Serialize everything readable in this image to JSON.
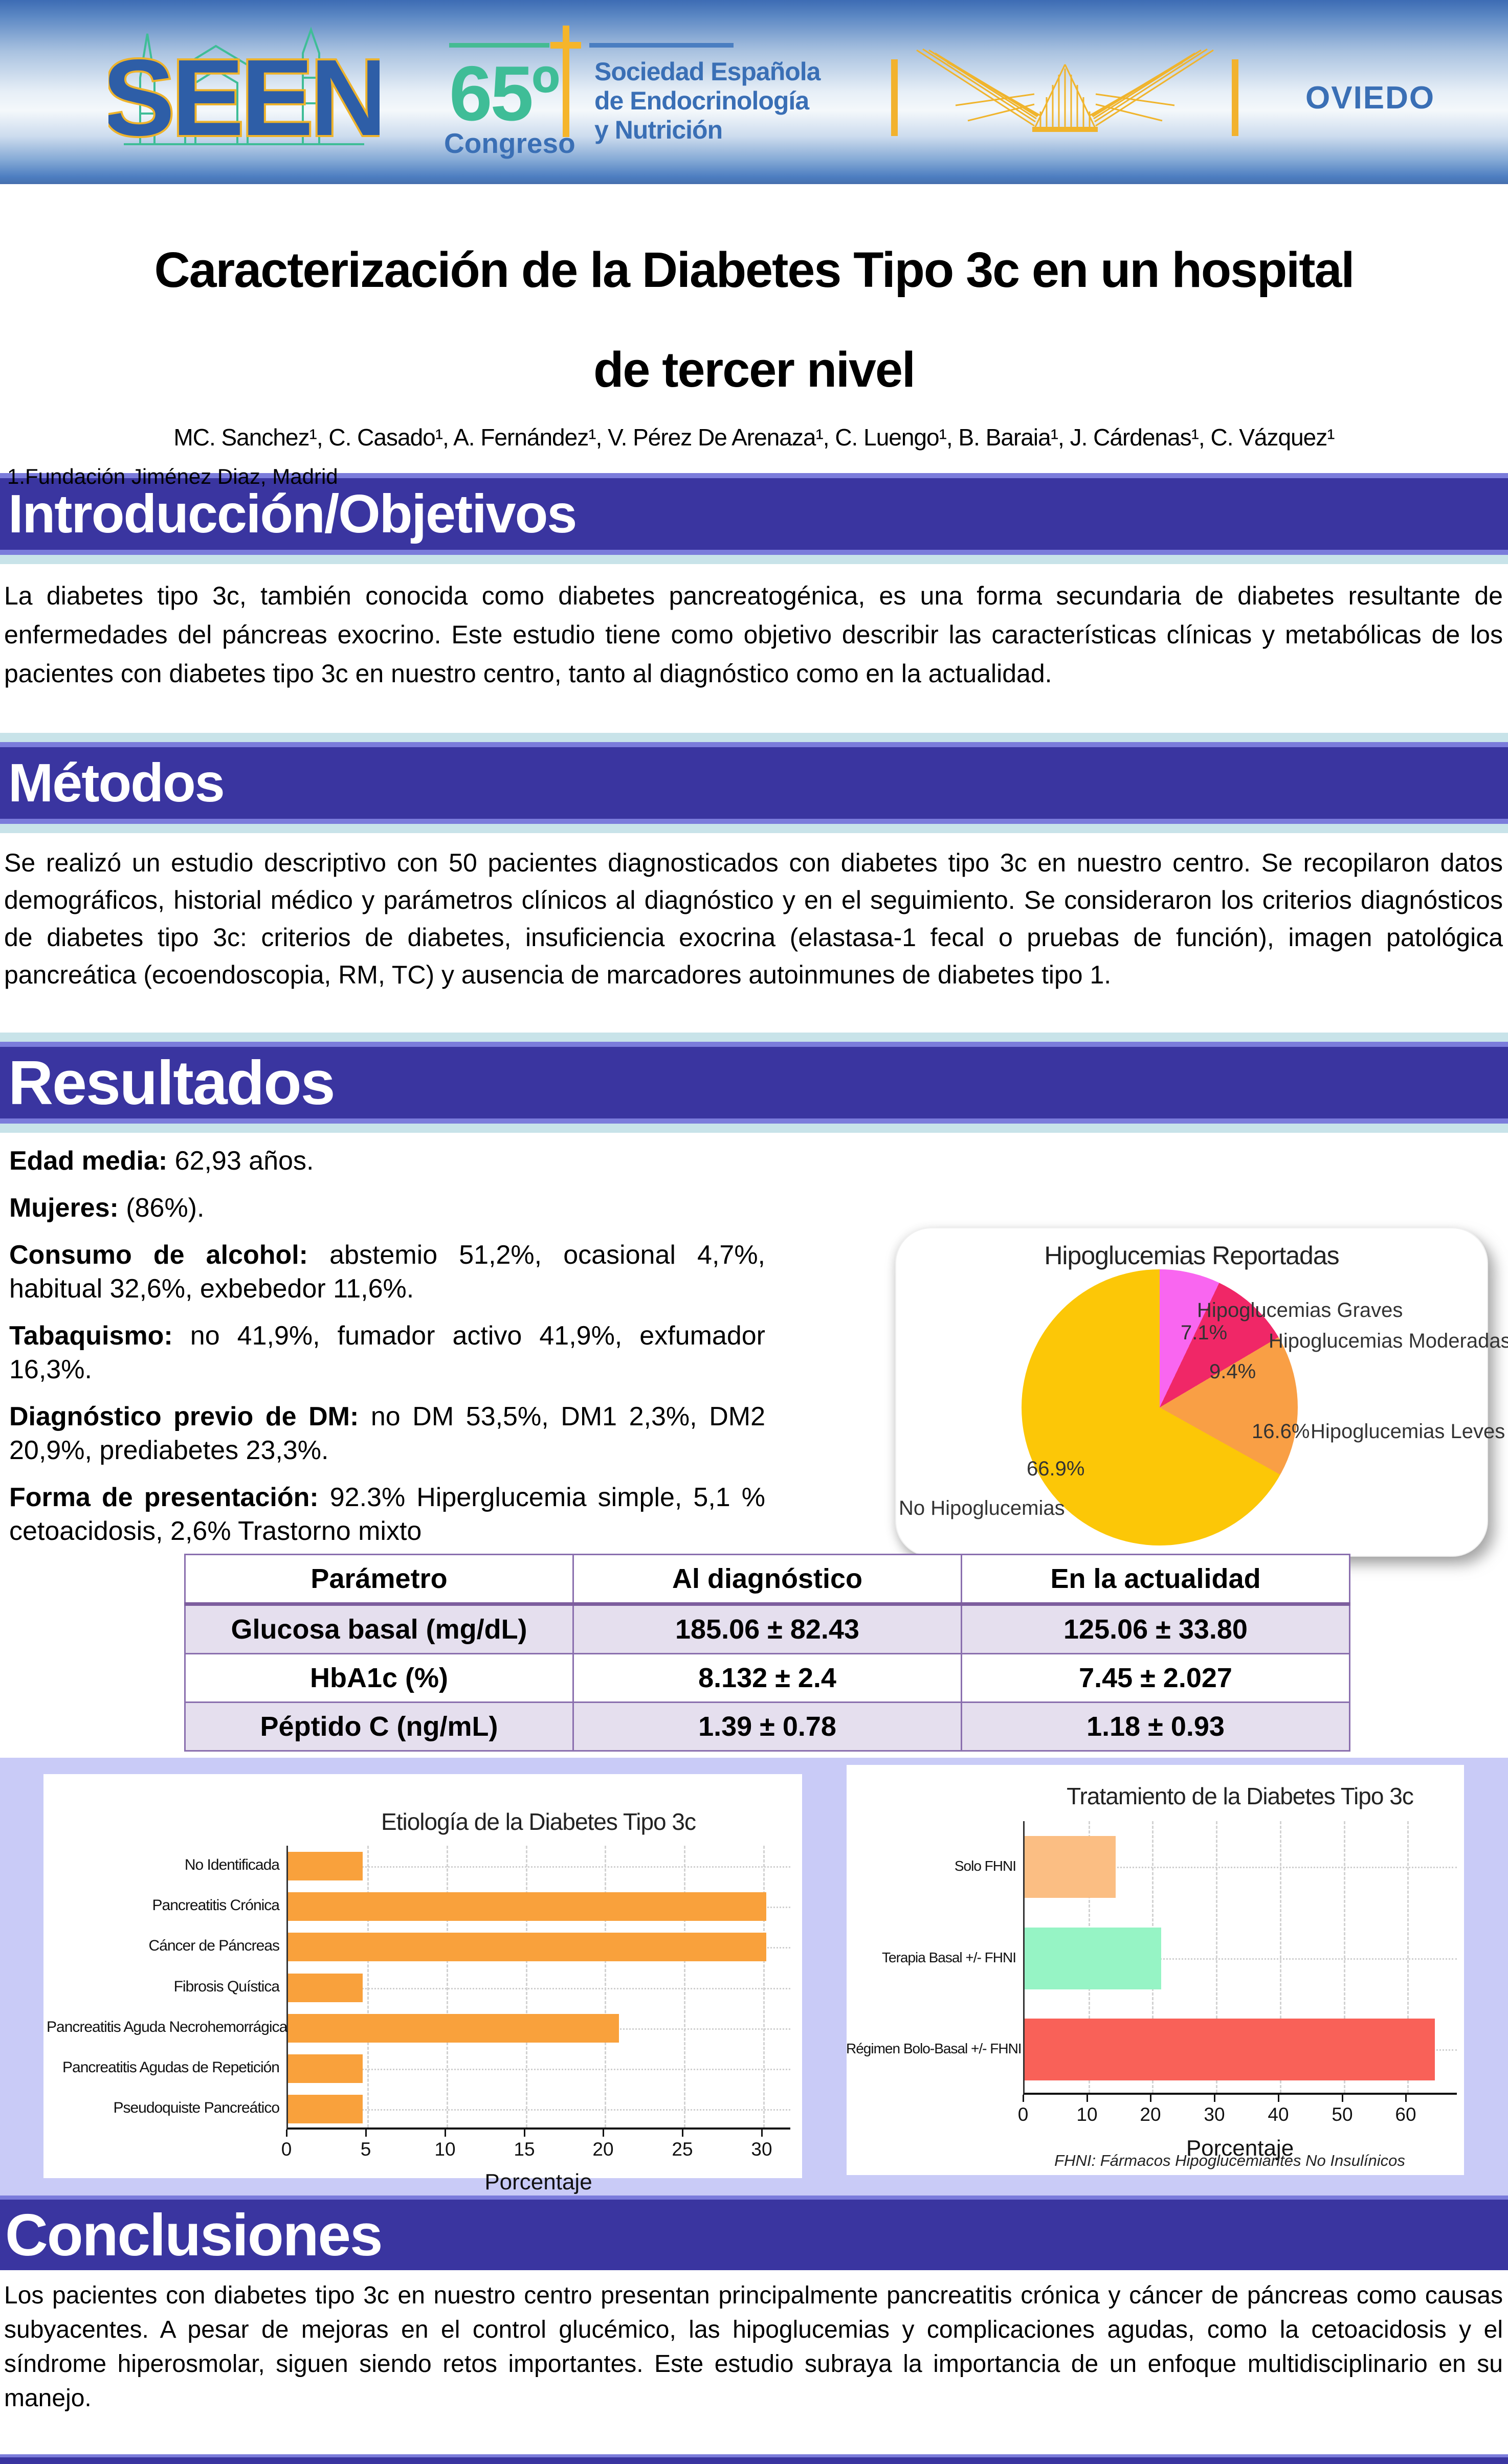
{
  "header": {
    "seen_logo": "SEEN",
    "congress_number": "65º",
    "congress_word": "Congreso",
    "society_lines": [
      "Sociedad Española",
      "de Endocrinología",
      "y Nutrición"
    ],
    "city": "OVIEDO"
  },
  "title_block": {
    "title_line1": "Caracterización de la Diabetes Tipo 3c en un hospital",
    "title_line2": "de tercer nivel",
    "authors": "MC. Sanchez¹, C. Casado¹, A. Fernández¹, V. Pérez De Arenaza¹, C. Luengo¹, B. Baraia¹, J. Cárdenas¹, C. Vázquez¹",
    "affiliation": "1.Fundación Jiménez Diaz, Madrid"
  },
  "sections": {
    "introduccion": {
      "heading": "Introducción/Objetivos",
      "body": "La diabetes tipo 3c, también conocida como diabetes pancreatogénica, es una forma secundaria de diabetes resultante de enfermedades del páncreas exocrino. Este estudio tiene como objetivo describir las características clínicas y metabólicas de los pacientes con diabetes tipo 3c en nuestro centro, tanto al diagnóstico como en la actualidad."
    },
    "metodos": {
      "heading": "Métodos",
      "body": "Se realizó un estudio descriptivo con 50 pacientes diagnosticados con diabetes tipo 3c en nuestro centro. Se recopilaron datos demográficos, historial médico y parámetros clínicos al diagnóstico y en el seguimiento. Se consideraron los criterios diagnósticos de diabetes tipo 3c: criterios de diabetes, insuficiencia exocrina (elastasa-1 fecal o pruebas de función), imagen patológica pancreática (ecoendoscopia, RM, TC) y ausencia de marcadores autoinmunes de diabetes tipo 1."
    },
    "resultados": {
      "heading": "Resultados"
    },
    "conclusiones": {
      "heading": "Conclusiones",
      "body": "Los pacientes con diabetes tipo 3c en nuestro centro presentan principalmente pancreatitis crónica y cáncer de páncreas como causas subyacentes. A pesar de mejoras en el control glucémico, las hipoglucemias y complicaciones agudas, como la cetoacidosis y el síndrome hiperosmolar, siguen siendo retos importantes. Este estudio subraya la importancia de un enfoque multidisciplinario en su manejo."
    }
  },
  "resultados_stats": [
    {
      "label": "Edad media:",
      "value": "62,93 años."
    },
    {
      "label": "Mujeres:",
      "value": "(86%)."
    },
    {
      "label": "Consumo de alcohol:",
      "value": "abstemio 51,2%, ocasional 4,7%, habitual 32,6%, exbebedor 11,6%."
    },
    {
      "label": "Tabaquismo:",
      "value": "no 41,9%, fumador activo 41,9%, exfumador 16,3%."
    },
    {
      "label": "Diagnóstico previo de DM:",
      "value": "no DM 53,5%, DM1 2,3%, DM2 20,9%, prediabetes 23,3%."
    },
    {
      "label": "Forma de presentación:",
      "value": "92.3% Hiperglucemia simple, 5,1 % cetoacidosis, 2,6% Trastorno mixto"
    }
  ],
  "table": {
    "headers": [
      "Parámetro",
      "Al diagnóstico",
      "En la actualidad"
    ],
    "rows": [
      [
        "Glucosa basal (mg/dL)",
        "185.06 ± 82.43",
        "125.06 ± 33.80"
      ],
      [
        "HbA1c (%)",
        "8.132 ± 2.4",
        "7.45 ± 2.027"
      ],
      [
        "Péptido C (ng/mL)",
        "1.39 ± 0.78",
        "1.18 ± 0.93"
      ]
    ]
  },
  "chart_data": [
    {
      "type": "pie",
      "title": "Hipoglucemias Reportadas",
      "slices": [
        {
          "label": "Hipoglucemias Graves",
          "value": 7.1,
          "color": "#f966f0"
        },
        {
          "label": "Hipoglucemias Moderadas",
          "value": 9.4,
          "color": "#f02767"
        },
        {
          "label": "Hipoglucemias Leves",
          "value": 16.6,
          "color": "#f99f45"
        },
        {
          "label": "No Hipoglucemias",
          "value": 66.9,
          "color": "#fcc707"
        }
      ],
      "legend_position": "around-labels",
      "start_angle_deg": 0,
      "direction": "clockwise"
    },
    {
      "type": "bar",
      "orientation": "horizontal",
      "title": "Etiología de la Diabetes Tipo 3c",
      "categories": [
        "No Identificada",
        "Pancreatitis Crónica",
        "Cáncer de Páncreas",
        "Fibrosis Quística",
        "Pancreatitis Aguda Necrohemorrágica",
        "Pancreatitis Agudas de Repetición",
        "Pseudoquiste Pancreático"
      ],
      "values": [
        4.7,
        30.2,
        30.2,
        4.7,
        20.9,
        4.7,
        4.7
      ],
      "bar_color": "#f9a13c",
      "xlabel": "Porcentaje",
      "xticks": [
        0,
        5,
        10,
        15,
        20,
        25,
        30
      ],
      "xlim": [
        0,
        31.8
      ],
      "grid": true
    },
    {
      "type": "bar",
      "orientation": "horizontal",
      "title": "Tratamiento de la Diabetes Tipo 3c",
      "categories": [
        "Solo FHNI",
        "Terapia Basal +/- FHNI",
        "Régimen Bolo-Basal +/- FHNI"
      ],
      "values": [
        14.3,
        21.4,
        64.3
      ],
      "bar_colors": [
        "#fbbe83",
        "#96f4c5",
        "#f96158"
      ],
      "xlabel": "Porcentaje",
      "xticks": [
        0,
        10,
        20,
        30,
        40,
        50,
        60
      ],
      "xlim": [
        0,
        68
      ],
      "footnote": "FHNI: Fármacos Hipoglucemiantes No Insulínicos",
      "grid": true
    }
  ],
  "colors": {
    "section_bar": "#3a35a0",
    "periwinkle_strip": "#7b7cdb",
    "cyan_strip": "#c8e3e9",
    "chart_band": "#c9cbf7",
    "table_border": "#8a6fae",
    "table_row_shade": "#e5dfee",
    "header_blue": "#3a6fb5",
    "header_teal": "#3fbd97",
    "header_gold": "#f2b22e"
  }
}
